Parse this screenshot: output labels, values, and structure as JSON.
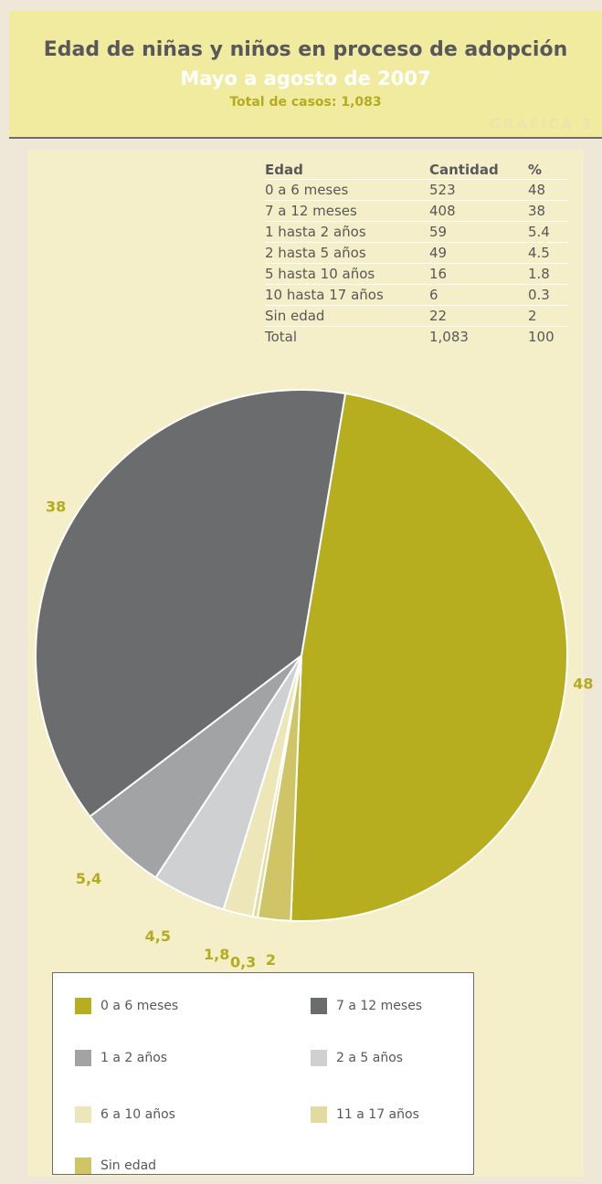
{
  "header": {
    "title": "Edad de niñas y niños en proceso de adopción",
    "subtitle": "Mayo a agosto de 2007",
    "total": "Total de casos: 1,083",
    "tag": "GRÁFICA 3"
  },
  "table": {
    "headers": [
      "Edad",
      "Cantidad",
      "%"
    ],
    "rows": [
      [
        "0 a 6 meses",
        "523",
        "48"
      ],
      [
        "7 a 12 meses",
        "408",
        "38"
      ],
      [
        "1 hasta 2 años",
        "59",
        "5.4"
      ],
      [
        "2 hasta 5 años",
        "49",
        "4.5"
      ],
      [
        "5 hasta 10 años",
        "16",
        "1.8"
      ],
      [
        "10 hasta 17 años",
        "6",
        "0.3"
      ],
      [
        "Sin edad",
        "22",
        "2"
      ],
      [
        "Total",
        "1,083",
        "100"
      ]
    ]
  },
  "chart_data": {
    "type": "pie",
    "categories": [
      "0 a 6 meses",
      "Sin edad",
      "11 a 17 años",
      "6 a 10 años",
      "2 a 5 años",
      "1 a 2 años",
      "7 a 12 meses"
    ],
    "values": [
      48,
      2,
      0.3,
      1.8,
      4.5,
      5.4,
      38
    ],
    "value_labels": [
      "48",
      "2",
      "0,3",
      "1,8",
      "4,5",
      "5,4",
      "38"
    ],
    "colors": [
      "#b7ae1f",
      "#cfc566",
      "#e2dba0",
      "#ede6b9",
      "#cfd0d2",
      "#a2a3a5",
      "#6b6c6e"
    ]
  },
  "legend": {
    "items": [
      {
        "label": "0 a 6 meses",
        "color": "#b7ae1f"
      },
      {
        "label": "7 a 12 meses",
        "color": "#6b6c6e"
      },
      {
        "label": "1 a 2 años",
        "color": "#a2a3a5"
      },
      {
        "label": "2 a 5 años",
        "color": "#cfd0d2"
      },
      {
        "label": "6 a 10 años",
        "color": "#ede6b9"
      },
      {
        "label": "11 a 17 años",
        "color": "#e2dba0"
      },
      {
        "label": "Sin edad",
        "color": "#cfc566"
      }
    ]
  }
}
